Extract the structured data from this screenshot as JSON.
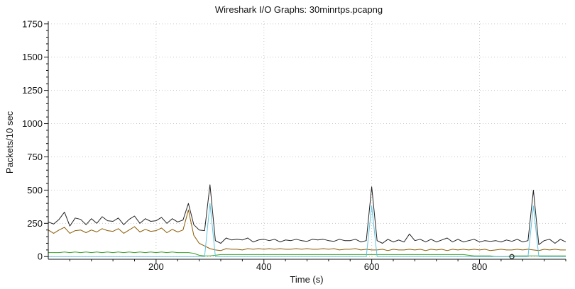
{
  "chart_data": {
    "type": "line",
    "title": "Wireshark I/O Graphs: 30minrtps.pcapng",
    "xlabel": "Time (s)",
    "ylabel": "Packets/10 sec",
    "xlim": [
      0,
      960
    ],
    "ylim": [
      -20,
      1770
    ],
    "x_ticks": [
      200,
      400,
      600,
      800
    ],
    "y_ticks": [
      0,
      250,
      500,
      750,
      1000,
      1250,
      1500,
      1750
    ],
    "grid": true,
    "series": [
      {
        "color": "#222222",
        "points": [
          [
            0,
            260
          ],
          [
            10,
            245
          ],
          [
            20,
            280
          ],
          [
            30,
            335
          ],
          [
            40,
            230
          ],
          [
            50,
            290
          ],
          [
            60,
            280
          ],
          [
            70,
            240
          ],
          [
            80,
            285
          ],
          [
            90,
            250
          ],
          [
            100,
            300
          ],
          [
            110,
            270
          ],
          [
            120,
            265
          ],
          [
            130,
            290
          ],
          [
            140,
            240
          ],
          [
            150,
            280
          ],
          [
            160,
            305
          ],
          [
            170,
            250
          ],
          [
            180,
            285
          ],
          [
            190,
            265
          ],
          [
            200,
            270
          ],
          [
            210,
            295
          ],
          [
            220,
            250
          ],
          [
            230,
            285
          ],
          [
            240,
            260
          ],
          [
            250,
            275
          ],
          [
            260,
            400
          ],
          [
            270,
            240
          ],
          [
            280,
            200
          ],
          [
            290,
            195
          ],
          [
            300,
            540
          ],
          [
            310,
            120
          ],
          [
            320,
            100
          ],
          [
            330,
            140
          ],
          [
            340,
            125
          ],
          [
            350,
            130
          ],
          [
            360,
            125
          ],
          [
            370,
            140
          ],
          [
            380,
            110
          ],
          [
            390,
            125
          ],
          [
            400,
            130
          ],
          [
            410,
            120
          ],
          [
            420,
            130
          ],
          [
            430,
            110
          ],
          [
            440,
            125
          ],
          [
            450,
            120
          ],
          [
            460,
            130
          ],
          [
            470,
            120
          ],
          [
            480,
            115
          ],
          [
            490,
            130
          ],
          [
            500,
            125
          ],
          [
            510,
            130
          ],
          [
            520,
            120
          ],
          [
            530,
            115
          ],
          [
            540,
            130
          ],
          [
            550,
            120
          ],
          [
            560,
            120
          ],
          [
            570,
            130
          ],
          [
            580,
            110
          ],
          [
            590,
            120
          ],
          [
            600,
            525
          ],
          [
            610,
            120
          ],
          [
            620,
            100
          ],
          [
            630,
            130
          ],
          [
            640,
            110
          ],
          [
            650,
            125
          ],
          [
            660,
            110
          ],
          [
            670,
            170
          ],
          [
            680,
            120
          ],
          [
            690,
            130
          ],
          [
            700,
            110
          ],
          [
            710,
            130
          ],
          [
            720,
            110
          ],
          [
            730,
            125
          ],
          [
            740,
            140
          ],
          [
            750,
            110
          ],
          [
            760,
            130
          ],
          [
            770,
            110
          ],
          [
            780,
            120
          ],
          [
            790,
            130
          ],
          [
            800,
            110
          ],
          [
            810,
            120
          ],
          [
            820,
            115
          ],
          [
            830,
            120
          ],
          [
            840,
            110
          ],
          [
            850,
            125
          ],
          [
            860,
            115
          ],
          [
            870,
            130
          ],
          [
            880,
            110
          ],
          [
            890,
            120
          ],
          [
            900,
            500
          ],
          [
            910,
            90
          ],
          [
            920,
            120
          ],
          [
            930,
            130
          ],
          [
            940,
            100
          ],
          [
            950,
            130
          ],
          [
            960,
            110
          ]
        ]
      },
      {
        "color": "#8a5a00",
        "points": [
          [
            0,
            200
          ],
          [
            10,
            175
          ],
          [
            20,
            200
          ],
          [
            30,
            220
          ],
          [
            40,
            175
          ],
          [
            50,
            195
          ],
          [
            60,
            200
          ],
          [
            70,
            180
          ],
          [
            80,
            200
          ],
          [
            90,
            185
          ],
          [
            100,
            210
          ],
          [
            110,
            195
          ],
          [
            120,
            190
          ],
          [
            130,
            210
          ],
          [
            140,
            175
          ],
          [
            150,
            200
          ],
          [
            160,
            225
          ],
          [
            170,
            185
          ],
          [
            180,
            205
          ],
          [
            190,
            190
          ],
          [
            200,
            195
          ],
          [
            210,
            215
          ],
          [
            220,
            180
          ],
          [
            230,
            205
          ],
          [
            240,
            185
          ],
          [
            250,
            200
          ],
          [
            260,
            350
          ],
          [
            270,
            160
          ],
          [
            280,
            100
          ],
          [
            290,
            80
          ],
          [
            300,
            60
          ],
          [
            310,
            50
          ],
          [
            320,
            45
          ],
          [
            330,
            60
          ],
          [
            340,
            55
          ],
          [
            350,
            55
          ],
          [
            360,
            50
          ],
          [
            370,
            60
          ],
          [
            380,
            55
          ],
          [
            390,
            60
          ],
          [
            400,
            55
          ],
          [
            410,
            60
          ],
          [
            420,
            55
          ],
          [
            430,
            60
          ],
          [
            440,
            55
          ],
          [
            450,
            55
          ],
          [
            460,
            60
          ],
          [
            470,
            55
          ],
          [
            480,
            60
          ],
          [
            490,
            55
          ],
          [
            500,
            55
          ],
          [
            510,
            60
          ],
          [
            520,
            55
          ],
          [
            530,
            60
          ],
          [
            540,
            50
          ],
          [
            550,
            55
          ],
          [
            560,
            55
          ],
          [
            570,
            60
          ],
          [
            580,
            50
          ],
          [
            590,
            55
          ],
          [
            600,
            50
          ],
          [
            610,
            50
          ],
          [
            620,
            55
          ],
          [
            630,
            45
          ],
          [
            640,
            55
          ],
          [
            650,
            50
          ],
          [
            660,
            50
          ],
          [
            670,
            55
          ],
          [
            680,
            50
          ],
          [
            690,
            55
          ],
          [
            700,
            45
          ],
          [
            710,
            55
          ],
          [
            720,
            50
          ],
          [
            730,
            55
          ],
          [
            740,
            45
          ],
          [
            750,
            55
          ],
          [
            760,
            50
          ],
          [
            770,
            55
          ],
          [
            780,
            50
          ],
          [
            790,
            55
          ],
          [
            800,
            50
          ],
          [
            810,
            55
          ],
          [
            820,
            45
          ],
          [
            830,
            50
          ],
          [
            840,
            55
          ],
          [
            850,
            50
          ],
          [
            860,
            50
          ],
          [
            870,
            55
          ],
          [
            880,
            50
          ],
          [
            890,
            55
          ],
          [
            900,
            50
          ],
          [
            910,
            45
          ],
          [
            920,
            55
          ],
          [
            930,
            50
          ],
          [
            940,
            55
          ],
          [
            950,
            50
          ],
          [
            960,
            50
          ]
        ]
      },
      {
        "color": "#3aa02a",
        "points": [
          [
            0,
            30
          ],
          [
            10,
            30
          ],
          [
            20,
            30
          ],
          [
            30,
            35
          ],
          [
            40,
            30
          ],
          [
            50,
            35
          ],
          [
            60,
            30
          ],
          [
            70,
            35
          ],
          [
            80,
            30
          ],
          [
            90,
            35
          ],
          [
            100,
            30
          ],
          [
            110,
            35
          ],
          [
            120,
            30
          ],
          [
            130,
            35
          ],
          [
            140,
            30
          ],
          [
            150,
            35
          ],
          [
            160,
            30
          ],
          [
            170,
            35
          ],
          [
            180,
            30
          ],
          [
            190,
            35
          ],
          [
            200,
            30
          ],
          [
            210,
            35
          ],
          [
            220,
            30
          ],
          [
            230,
            35
          ],
          [
            240,
            30
          ],
          [
            250,
            30
          ],
          [
            260,
            30
          ],
          [
            270,
            25
          ],
          [
            280,
            10
          ],
          [
            290,
            5
          ],
          [
            300,
            5
          ],
          [
            310,
            10
          ],
          [
            320,
            15
          ],
          [
            330,
            15
          ],
          [
            340,
            15
          ],
          [
            350,
            15
          ],
          [
            360,
            15
          ],
          [
            370,
            15
          ],
          [
            380,
            15
          ],
          [
            390,
            15
          ],
          [
            400,
            15
          ],
          [
            410,
            15
          ],
          [
            420,
            15
          ],
          [
            430,
            15
          ],
          [
            440,
            15
          ],
          [
            450,
            15
          ],
          [
            460,
            15
          ],
          [
            470,
            15
          ],
          [
            480,
            15
          ],
          [
            490,
            15
          ],
          [
            500,
            15
          ],
          [
            510,
            15
          ],
          [
            520,
            15
          ],
          [
            530,
            15
          ],
          [
            540,
            15
          ],
          [
            550,
            15
          ],
          [
            560,
            15
          ],
          [
            570,
            15
          ],
          [
            580,
            15
          ],
          [
            590,
            15
          ],
          [
            600,
            15
          ],
          [
            610,
            15
          ],
          [
            620,
            15
          ],
          [
            630,
            15
          ],
          [
            640,
            15
          ],
          [
            650,
            15
          ],
          [
            660,
            15
          ],
          [
            670,
            15
          ],
          [
            680,
            15
          ],
          [
            690,
            15
          ],
          [
            700,
            15
          ],
          [
            710,
            15
          ],
          [
            720,
            15
          ],
          [
            730,
            15
          ],
          [
            740,
            15
          ],
          [
            750,
            15
          ],
          [
            760,
            15
          ],
          [
            770,
            15
          ],
          [
            780,
            10
          ],
          [
            790,
            5
          ],
          [
            800,
            5
          ],
          [
            810,
            5
          ],
          [
            820,
            5
          ],
          [
            830,
            0
          ],
          [
            840,
            0
          ],
          [
            850,
            0
          ],
          [
            860,
            5
          ],
          [
            870,
            5
          ],
          [
            880,
            5
          ],
          [
            890,
            5
          ],
          [
            900,
            5
          ],
          [
            910,
            5
          ],
          [
            920,
            5
          ],
          [
            930,
            5
          ],
          [
            940,
            5
          ],
          [
            950,
            5
          ],
          [
            960,
            5
          ]
        ]
      },
      {
        "color": "#5fc4e0",
        "points": [
          [
            0,
            0
          ],
          [
            280,
            0
          ],
          [
            290,
            0
          ],
          [
            300,
            400
          ],
          [
            310,
            0
          ],
          [
            590,
            0
          ],
          [
            600,
            380
          ],
          [
            610,
            0
          ],
          [
            890,
            0
          ],
          [
            900,
            380
          ],
          [
            910,
            0
          ],
          [
            960,
            0
          ]
        ]
      }
    ],
    "marker": {
      "x": 860,
      "y": 0
    }
  }
}
